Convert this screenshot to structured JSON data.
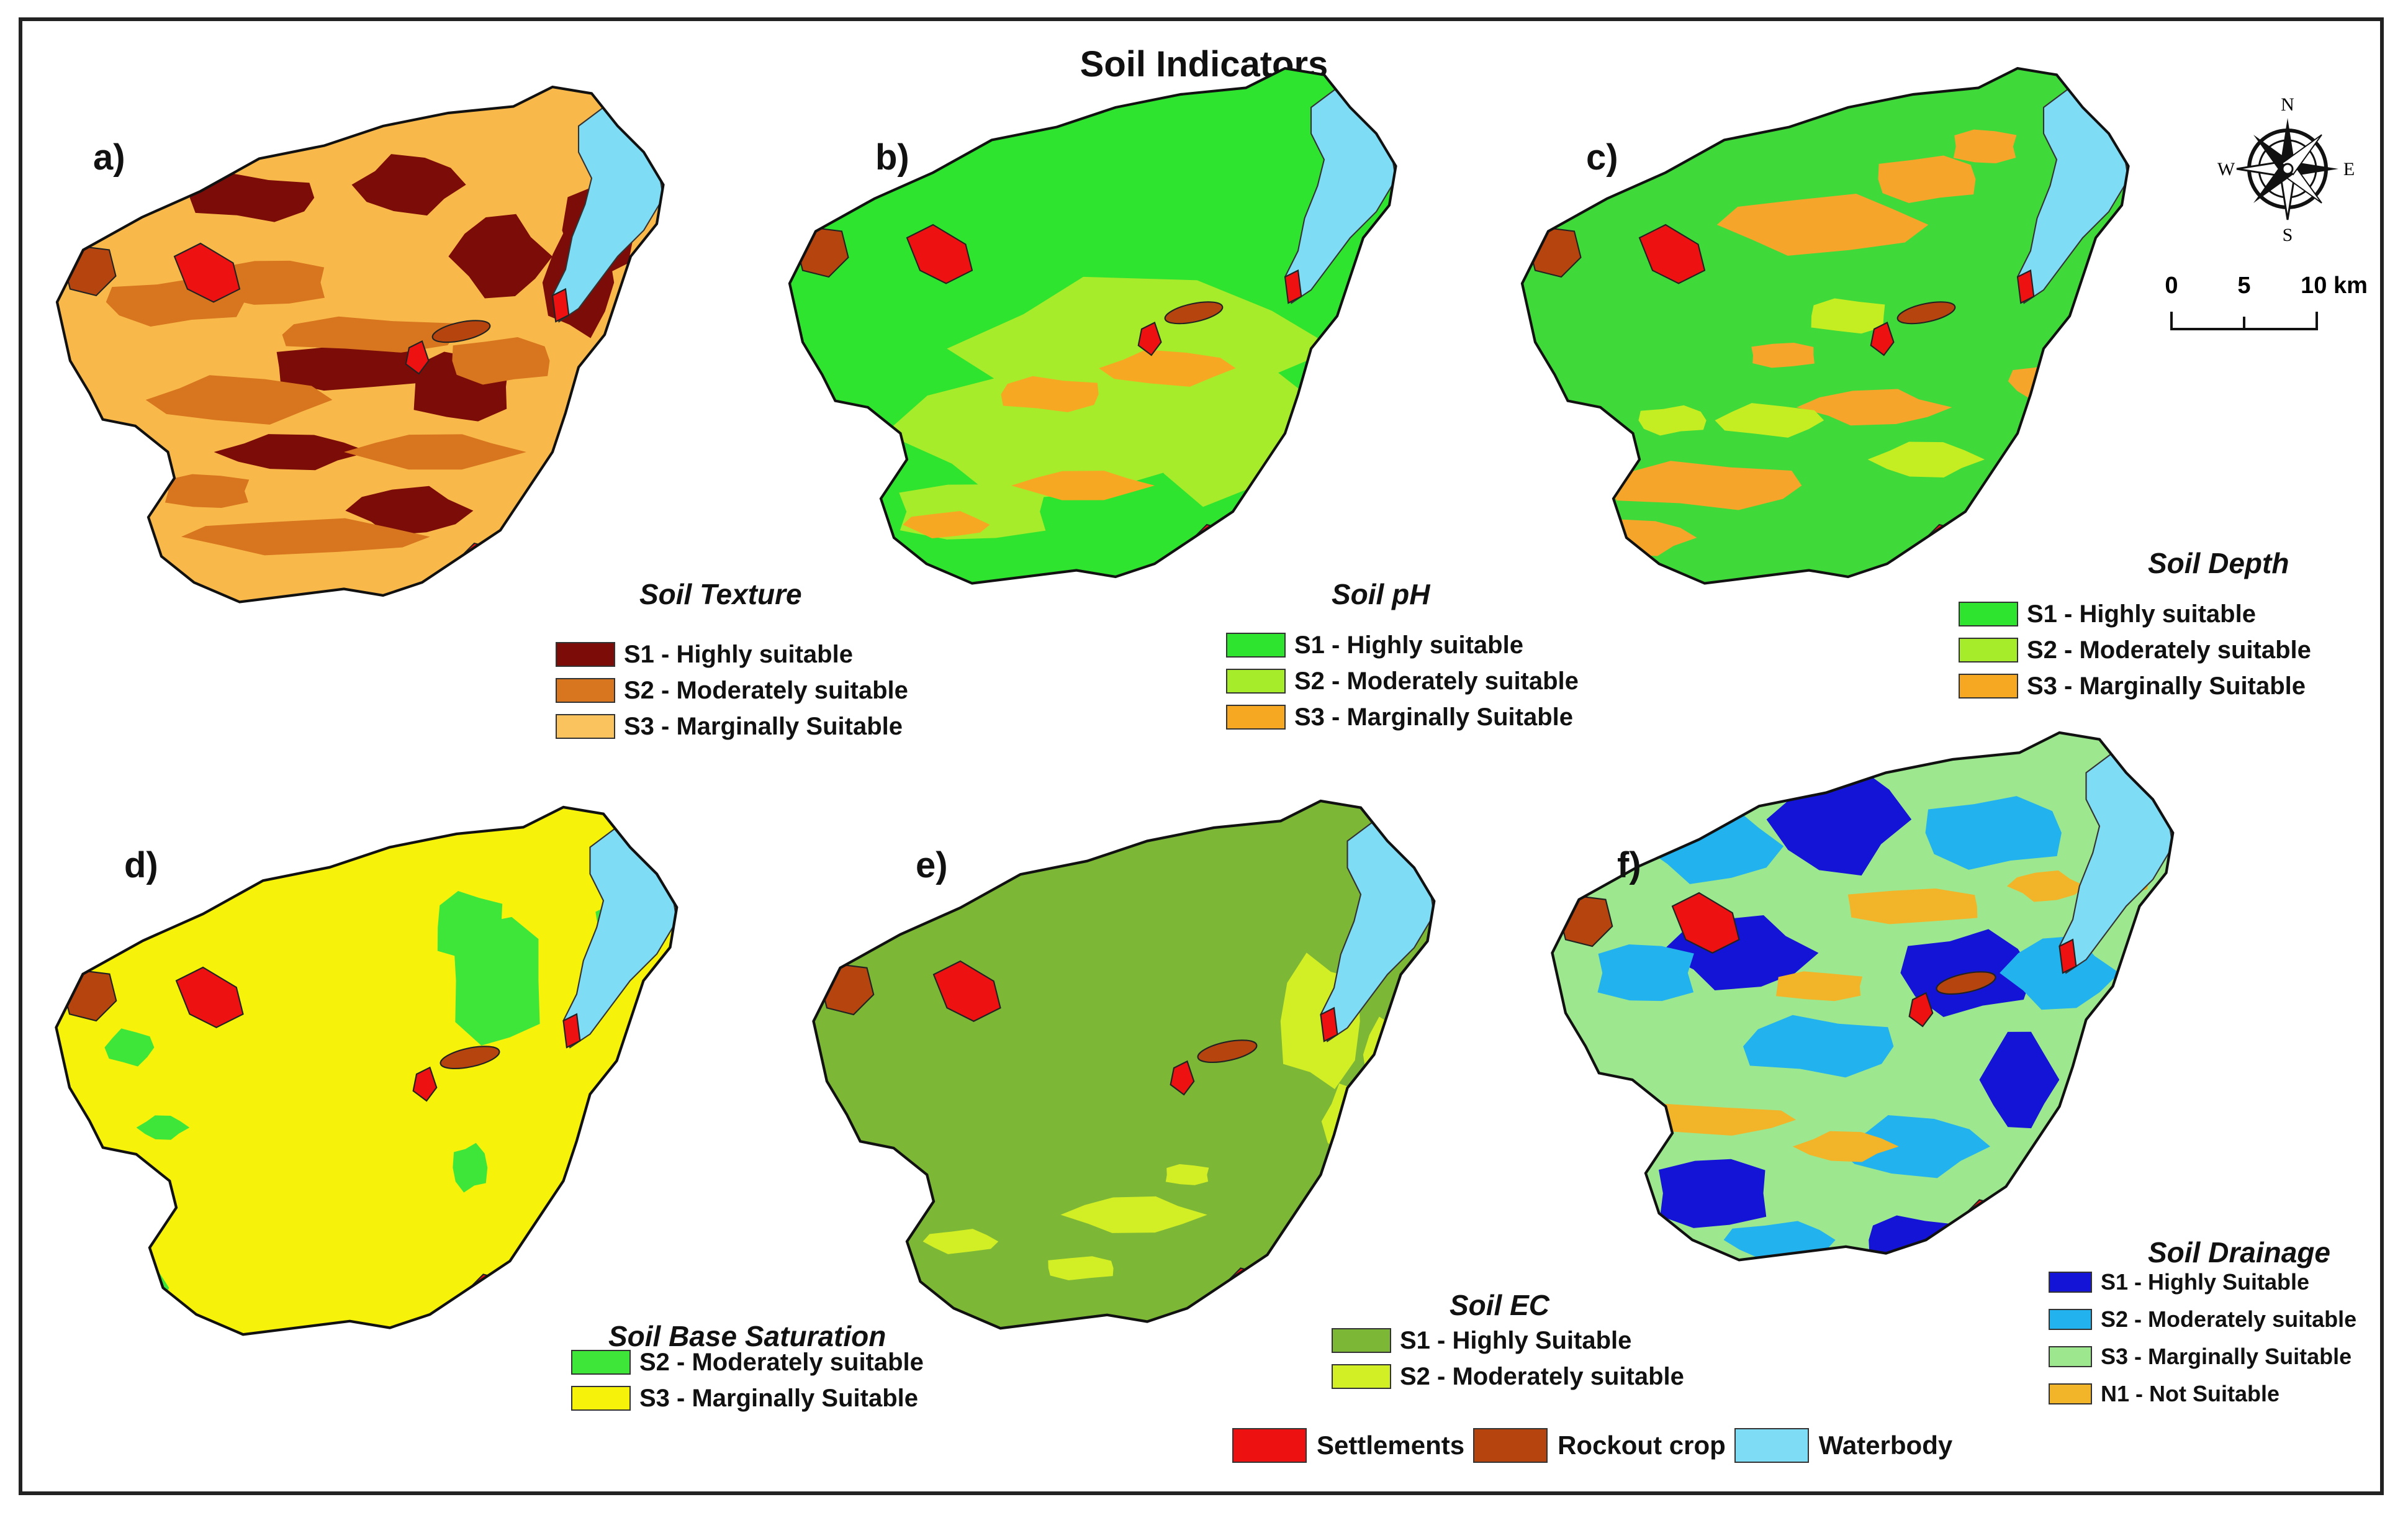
{
  "title": "Soil Indicators",
  "colors": {
    "settlement": "#ee1111",
    "rock": "#b5440f",
    "water": "#7fdcf5",
    "boundary": "#111111"
  },
  "panels": [
    {
      "label": "a)",
      "map_title": "Soil Texture",
      "base_color": "#f9b94a",
      "patch_colors": [
        "#7b0c08",
        "#d7761e"
      ],
      "legend": [
        {
          "label": "S1 - Highly suitable",
          "color": "#7b0c08"
        },
        {
          "label": "S2 - Moderately suitable",
          "color": "#d7761e"
        },
        {
          "label": "S3 - Marginally Suitable",
          "color": "#fbc35e"
        }
      ]
    },
    {
      "label": "b)",
      "map_title": "Soil pH",
      "base_color": "#2ee42e",
      "patch_colors": [
        "#a6ec2a",
        "#f7a823"
      ],
      "legend": [
        {
          "label": "S1 - Highly suitable",
          "color": "#2ee42e"
        },
        {
          "label": "S2 - Moderately suitable",
          "color": "#a6ec2a"
        },
        {
          "label": "S3 - Marginally Suitable",
          "color": "#f7a823"
        }
      ]
    },
    {
      "label": "c)",
      "map_title": "Soil Depth",
      "base_color": "#3fd93a",
      "patch_colors": [
        "#f5a52a",
        "#c4ee22"
      ],
      "legend": [
        {
          "label": "S1 - Highly suitable",
          "color": "#2ee42e"
        },
        {
          "label": "S2 - Moderately suitable",
          "color": "#a6ec2a"
        },
        {
          "label": "S3 - Marginally Suitable",
          "color": "#f7a823"
        }
      ]
    },
    {
      "label": "d)",
      "map_title": "Soil Base Saturation",
      "base_color": "#f6f20a",
      "patch_colors": [
        "#3ee63a"
      ],
      "legend": [
        {
          "label": "S2 - Moderately suitable",
          "color": "#3ee63a"
        },
        {
          "label": "S3 - Marginally Suitable",
          "color": "#f6f20a"
        }
      ]
    },
    {
      "label": "e)",
      "map_title": "Soil EC",
      "base_color": "#7cb736",
      "patch_colors": [
        "#d2ef25"
      ],
      "legend": [
        {
          "label": "S1 - Highly Suitable",
          "color": "#7cb736"
        },
        {
          "label": "S2 - Moderately suitable",
          "color": "#d2ef25"
        }
      ]
    },
    {
      "label": "f)",
      "map_title": "Soil Drainage",
      "base_color": "#9de88e",
      "patch_colors": [
        "#1414d6",
        "#22b2ee",
        "#f2b428"
      ],
      "legend": [
        {
          "label": "S1 - Highly Suitable",
          "color": "#1414d6"
        },
        {
          "label": "S2 - Moderately suitable",
          "color": "#22b2ee"
        },
        {
          "label": "S3 - Marginally Suitable",
          "color": "#9de88e"
        },
        {
          "label": "N1 - Not Suitable",
          "color": "#f2b428"
        }
      ]
    }
  ],
  "north_arrow": {
    "n": "N",
    "s": "S",
    "e": "E",
    "w": "W"
  },
  "scale": {
    "ticks": [
      "0",
      "5",
      "10 km"
    ]
  },
  "common_legend": [
    {
      "label": "Settlements",
      "color": "#ee1111"
    },
    {
      "label": "Rockout crop",
      "color": "#b5440f"
    },
    {
      "label": "Waterbody",
      "color": "#7fdcf5"
    }
  ]
}
